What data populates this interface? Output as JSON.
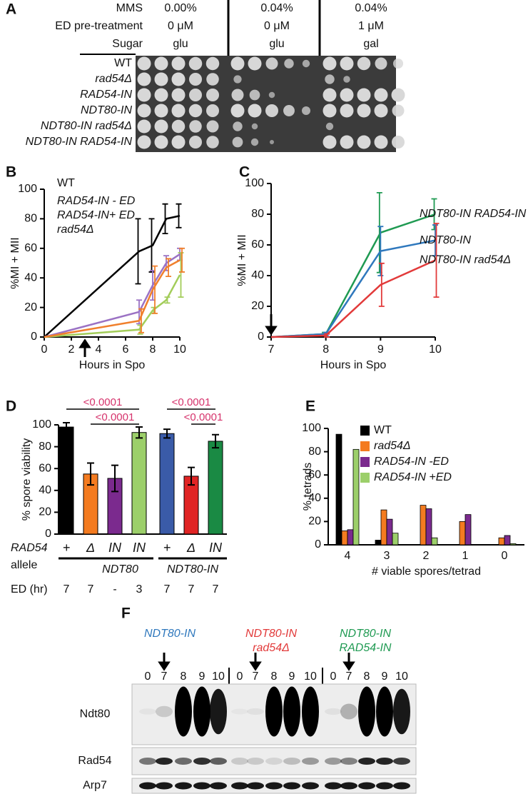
{
  "panel_a": {
    "panel": "A",
    "row_labels": [
      "MMS",
      "ED pre-treatment",
      "Sugar"
    ],
    "conditions": [
      {
        "mms": "0.00%",
        "ed": "0 μM",
        "sugar": "glu"
      },
      {
        "mms": "0.04%",
        "ed": "0 μM",
        "sugar": "glu"
      },
      {
        "mms": "0.04%",
        "ed": "1 μM",
        "sugar": "gal"
      }
    ],
    "strains": [
      "WT",
      "rad54Δ",
      "RAD54-IN",
      "NDT80-IN",
      "NDT80-IN rad54Δ",
      "NDT80-IN RAD54-IN"
    ]
  },
  "chart_data": [
    {
      "type": "line",
      "panel": "B",
      "xlabel": "Hours in Spo",
      "ylabel": "%MI + MII",
      "x": [
        0,
        7,
        8,
        9,
        10
      ],
      "xlim": [
        0,
        10
      ],
      "xticks": [
        0,
        2,
        4,
        6,
        8,
        10
      ],
      "ylim": [
        0,
        100
      ],
      "yticks": [
        0,
        20,
        40,
        60,
        80,
        100
      ],
      "arrow_x": 3,
      "legend": "upper left",
      "series": [
        {
          "name": "WT",
          "color": "#000000",
          "values": [
            0,
            58,
            62,
            80,
            82
          ],
          "errors": [
            0,
            22,
            18,
            10,
            8
          ]
        },
        {
          "name": "RAD54-IN - ED",
          "color": "#9b72c4",
          "values": [
            0,
            17,
            35,
            50,
            56
          ],
          "errors": [
            0,
            8,
            10,
            5,
            4
          ]
        },
        {
          "name": "RAD54-IN+ ED",
          "color": "#a3cd5a",
          "values": [
            0,
            5,
            18,
            25,
            42
          ],
          "errors": [
            0,
            3,
            2,
            2,
            15
          ]
        },
        {
          "name": "rad54Δ",
          "color": "#f07f2c",
          "values": [
            0,
            11,
            32,
            47,
            52
          ],
          "errors": [
            0,
            8,
            16,
            6,
            8
          ]
        }
      ]
    },
    {
      "type": "line",
      "panel": "C",
      "xlabel": "Hours in Spo",
      "ylabel": "%MI + MII",
      "x": [
        7,
        8,
        9,
        10
      ],
      "xlim": [
        7,
        10
      ],
      "xticks": [
        7,
        8,
        9,
        10
      ],
      "ylim": [
        0,
        100
      ],
      "yticks": [
        0,
        20,
        40,
        60,
        80,
        100
      ],
      "arrow_x": 7,
      "series": [
        {
          "name": "NDT80-IN RAD54-IN",
          "color": "#1f9a52",
          "values": [
            0,
            2,
            68,
            80
          ],
          "errors": [
            0,
            1,
            26,
            10
          ]
        },
        {
          "name": "NDT80-IN",
          "color": "#2f78bd",
          "values": [
            0,
            2,
            56,
            63
          ],
          "errors": [
            0,
            1,
            16,
            10
          ]
        },
        {
          "name": "NDT80-IN rad54Δ",
          "color": "#e23a3a",
          "values": [
            0,
            1,
            34,
            50
          ],
          "errors": [
            0,
            1,
            14,
            24
          ]
        }
      ]
    },
    {
      "type": "bar",
      "panel": "D",
      "ylabel": "% spore viability",
      "categories": [
        "+",
        "Δ",
        "IN",
        "IN",
        "+",
        "Δ",
        "IN"
      ],
      "values": [
        98,
        55,
        51,
        93,
        92,
        53,
        85
      ],
      "errors": [
        4,
        10,
        12,
        5,
        4,
        8,
        6
      ],
      "colors": [
        "#000000",
        "#f47b20",
        "#7b2a8e",
        "#9ccf6a",
        "#3a5ba8",
        "#e02424",
        "#1a8a44"
      ],
      "ylim": [
        0,
        100
      ],
      "yticks": [
        0,
        20,
        40,
        60,
        80,
        100
      ],
      "allele_label": "RAD54",
      "allele_sublabel": "allele",
      "groups": [
        "NDT80",
        "NDT80-IN"
      ],
      "ed_label": "ED (hr)",
      "ed_values": [
        "7",
        "7",
        "-",
        "3",
        "7",
        "7",
        "7"
      ],
      "comparisons": [
        "<0.0001",
        "<0.0001",
        "<0.0001",
        "<0.0001"
      ],
      "comparison_color": "#d6336c"
    },
    {
      "type": "bar",
      "panel": "E",
      "ylabel": "% tetrads",
      "xlabel": "# viable spores/tetrad",
      "categories": [
        "4",
        "3",
        "2",
        "1",
        "0"
      ],
      "ylim": [
        0,
        100
      ],
      "yticks": [
        0,
        20,
        40,
        60,
        80,
        100
      ],
      "legend": "upper right",
      "series": [
        {
          "name": "WT",
          "color": "#000000",
          "values": [
            95,
            4,
            0,
            0,
            0
          ]
        },
        {
          "name": "rad54Δ",
          "color": "#f47b20",
          "values": [
            12,
            30,
            34,
            20,
            6
          ]
        },
        {
          "name": "RAD54-IN -ED",
          "color": "#7b2a8e",
          "values": [
            13,
            22,
            31,
            26,
            8
          ]
        },
        {
          "name": "RAD54-IN +ED",
          "color": "#9ccf6a",
          "values": [
            82,
            10,
            6,
            0,
            1
          ]
        }
      ]
    }
  ],
  "panel_f": {
    "panel": "F",
    "groups": [
      {
        "lines": [
          "NDT80-IN"
        ],
        "color": "#2f78bd"
      },
      {
        "lines": [
          "NDT80-IN",
          "rad54Δ"
        ],
        "color": "#e23a3a"
      },
      {
        "lines": [
          "NDT80-IN",
          "RAD54-IN"
        ],
        "color": "#1f9a52"
      }
    ],
    "timepoints": [
      "0",
      "7",
      "8",
      "9",
      "10"
    ],
    "rows": [
      "Ndt80",
      "Rad54",
      "Arp7"
    ]
  }
}
